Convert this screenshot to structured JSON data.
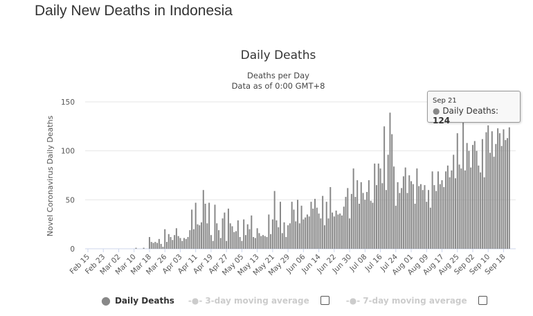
{
  "page_title": "Daily New Deaths in Indonesia",
  "chart_data": {
    "type": "bar",
    "title": "Daily Deaths",
    "subtitle": [
      "Deaths per Day",
      "Data as of 0:00 GMT+8"
    ],
    "ylabel": "Novel Coronavirus Daily Deaths",
    "xlabel": "",
    "ylim": [
      0,
      150
    ],
    "yticks": [
      0,
      50,
      100,
      150
    ],
    "grid": true,
    "x_range": [
      "Feb 15",
      "Sep 21"
    ],
    "tick_labels": [
      "Feb 15",
      "Feb 23",
      "Mar 02",
      "Mar 10",
      "Mar 18",
      "Mar 26",
      "Apr 03",
      "Apr 11",
      "Apr 19",
      "Apr 27",
      "May 05",
      "May 13",
      "May 21",
      "May 29",
      "Jun 06",
      "Jun 14",
      "Jun 22",
      "Jun 30",
      "Jul 08",
      "Jul 16",
      "Jul 24",
      "Aug 01",
      "Aug 09",
      "Aug 17",
      "Aug 25",
      "Sep 02",
      "Sep 10",
      "Sep 18"
    ],
    "color": "#888888",
    "series": [
      {
        "name": "Daily Deaths",
        "values": [
          0,
          0,
          0,
          0,
          0,
          0,
          0,
          0,
          0,
          0,
          0,
          0,
          0,
          0,
          0,
          0,
          0,
          0,
          0,
          0,
          0,
          0,
          0,
          0,
          0,
          1,
          0,
          0,
          0,
          1,
          0,
          0,
          12,
          7,
          6,
          7,
          6,
          10,
          5,
          2,
          20,
          7,
          15,
          12,
          9,
          14,
          21,
          13,
          11,
          8,
          11,
          10,
          12,
          19,
          40,
          20,
          47,
          25,
          24,
          27,
          60,
          46,
          26,
          47,
          14,
          8,
          45,
          26,
          19,
          11,
          31,
          37,
          8,
          41,
          26,
          23,
          17,
          18,
          29,
          12,
          8,
          30,
          14,
          25,
          20,
          34,
          12,
          11,
          21,
          16,
          13,
          14,
          13,
          12,
          35,
          15,
          30,
          59,
          29,
          22,
          48,
          16,
          27,
          12,
          24,
          26,
          48,
          40,
          28,
          50,
          26,
          44,
          30,
          32,
          35,
          33,
          48,
          41,
          51,
          42,
          36,
          31,
          54,
          24,
          48,
          31,
          63,
          37,
          33,
          39,
          35,
          36,
          34,
          43,
          53,
          62,
          31,
          56,
          82,
          53,
          70,
          46,
          68,
          57,
          50,
          58,
          70,
          49,
          47,
          87,
          65,
          87,
          82,
          67,
          125,
          60,
          96,
          139,
          117,
          84,
          44,
          68,
          57,
          62,
          74,
          83,
          57,
          75,
          69,
          66,
          46,
          82,
          64,
          66,
          60,
          65,
          48,
          60,
          42,
          79,
          65,
          59,
          79,
          66,
          70,
          63,
          79,
          85,
          73,
          80,
          96,
          72,
          118,
          86,
          82,
          130,
          80,
          108,
          100,
          83,
          106,
          110,
          100,
          85,
          78,
          112,
          73,
          119,
          126,
          98,
          120,
          94,
          107,
          123,
          118,
          105,
          122,
          111,
          113,
          124
        ]
      },
      {
        "name": "3-day moving average",
        "hidden": true
      },
      {
        "name": "7-day moving average",
        "hidden": true
      }
    ],
    "tooltip": {
      "date": "Sep 21",
      "label": "Daily Deaths:",
      "value": "124"
    }
  },
  "legend": {
    "items": [
      "Daily Deaths",
      "3-day moving average",
      "7-day moving average"
    ]
  }
}
